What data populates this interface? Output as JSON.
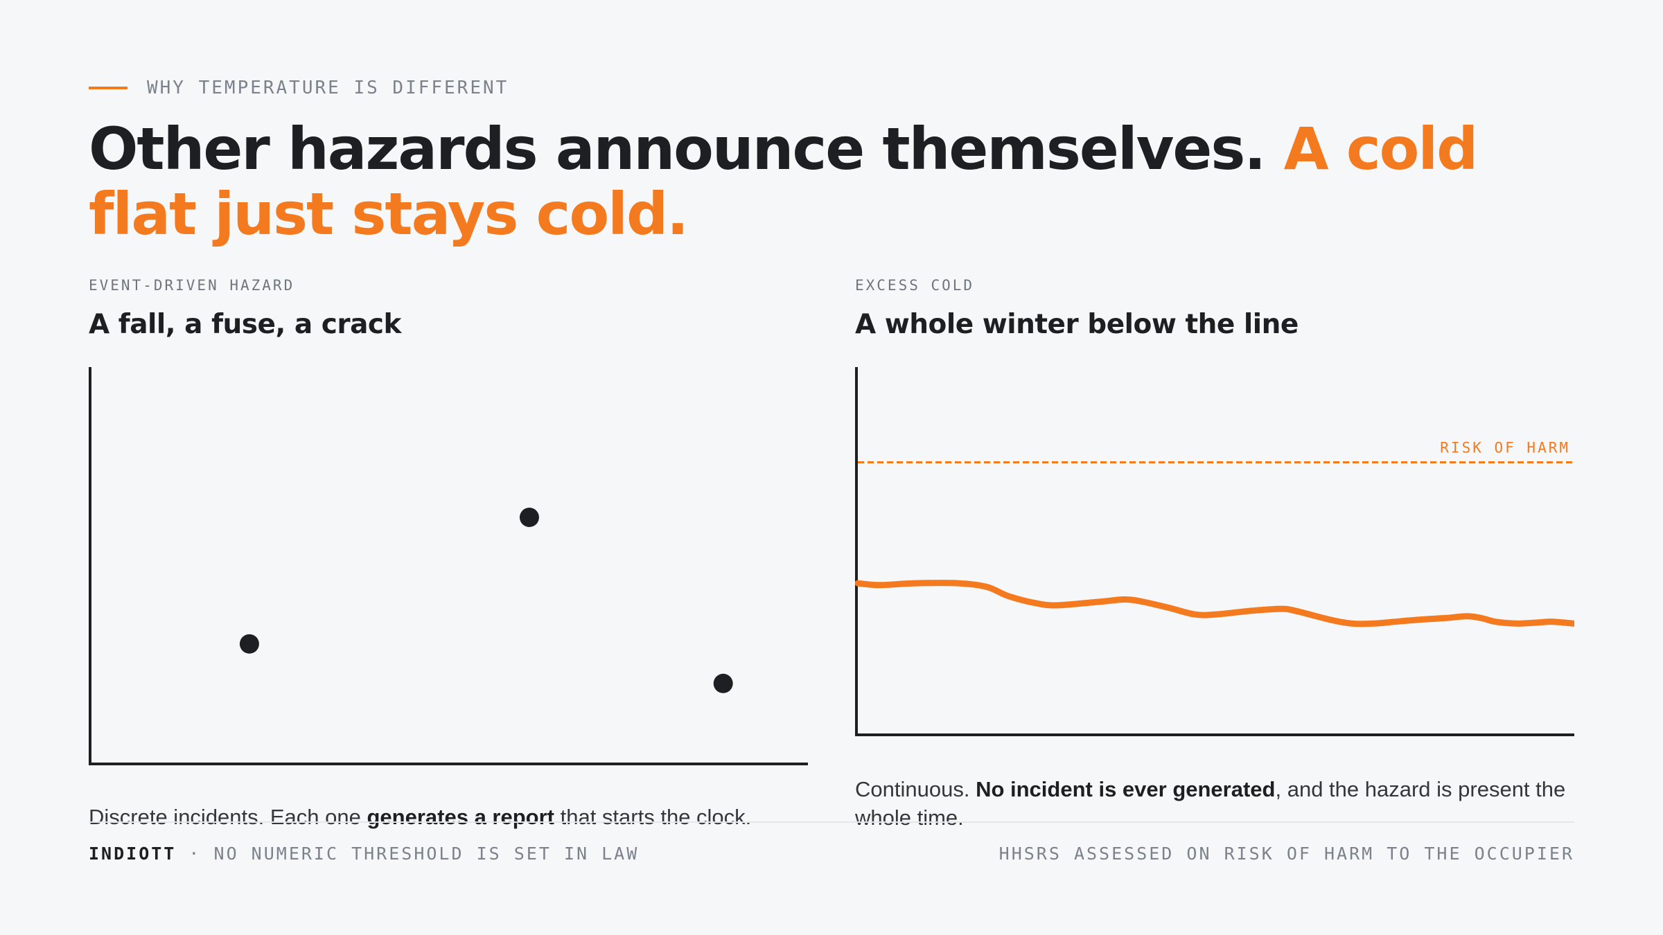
{
  "header": {
    "eyebrow": "WHY TEMPERATURE IS DIFFERENT",
    "headline_main": "Other hazards announce themselves. ",
    "headline_accent": "A cold flat just stays cold."
  },
  "colors": {
    "accent": "#f47a20",
    "ink": "#1d1f23",
    "muted": "#7c828b",
    "background": "#f6f7f8"
  },
  "panels": {
    "left": {
      "kicker": "EVENT-DRIVEN HAZARD",
      "title": "A fall, a fuse, a crack",
      "caption_pre": "Discrete incidents. Each one ",
      "caption_bold": "generates a report",
      "caption_post": " that starts the clock."
    },
    "right": {
      "kicker": "EXCESS COLD",
      "title": "A whole winter below the line",
      "caption_pre": "Continuous. ",
      "caption_bold": "No incident is ever generated",
      "caption_post": ", and the hazard is present the whole time."
    }
  },
  "chart_data": [
    {
      "type": "scatter",
      "title": "A fall, a fuse, a crack",
      "xlabel": "",
      "ylabel": "",
      "xlim": [
        0,
        100
      ],
      "ylim": [
        0,
        100
      ],
      "grid": false,
      "points": [
        {
          "x": 22,
          "y": 30
        },
        {
          "x": 61,
          "y": 62
        },
        {
          "x": 88,
          "y": 20
        }
      ]
    },
    {
      "type": "line",
      "title": "A whole winter below the line",
      "xlabel": "",
      "ylabel": "",
      "xlim": [
        0,
        100
      ],
      "ylim": [
        0,
        100
      ],
      "grid": false,
      "threshold": {
        "label": "RISK OF HARM",
        "value": 74
      },
      "series": [
        {
          "x": [
            0,
            3,
            8,
            14,
            18,
            21,
            25,
            28,
            34,
            38,
            43,
            47,
            50,
            55,
            59,
            61,
            66,
            69,
            72,
            75,
            78,
            82,
            85,
            87,
            89,
            92,
            95,
            97,
            100
          ],
          "values": [
            41,
            40.5,
            41,
            41,
            40,
            37.5,
            35.5,
            35,
            36,
            36.5,
            34.5,
            32.5,
            32.5,
            33.5,
            34,
            33.5,
            31,
            30,
            30,
            30.5,
            31,
            31.5,
            32,
            31.5,
            30.5,
            30,
            30.3,
            30.5,
            30
          ]
        }
      ]
    }
  ],
  "footer": {
    "brand": "INDIOTT",
    "left_text": " · NO NUMERIC THRESHOLD IS SET IN LAW",
    "right_text": "HHSRS ASSESSED ON RISK OF HARM TO THE OCCUPIER"
  }
}
